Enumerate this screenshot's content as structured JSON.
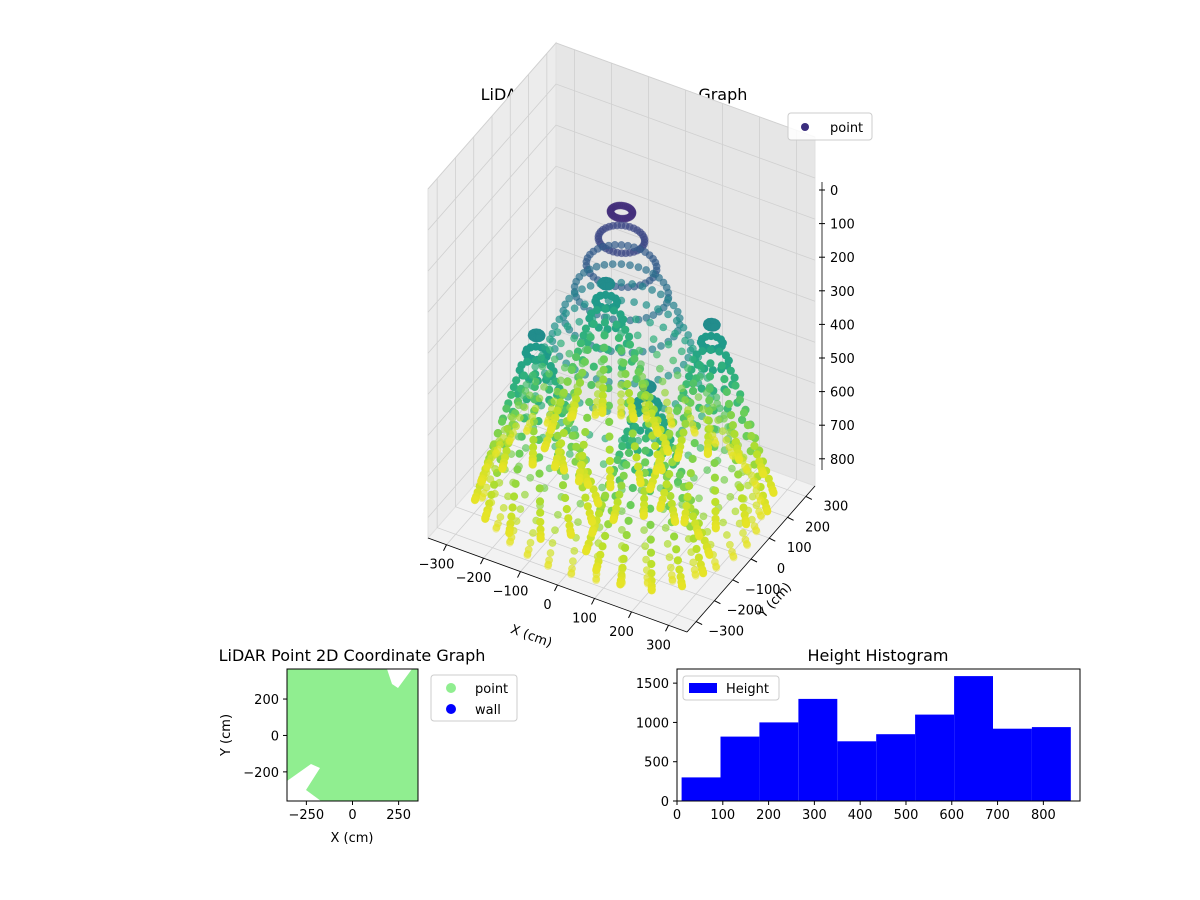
{
  "chart_data": [
    {
      "type": "scatter3d",
      "title": "LiDAR Point 3D Coordinate Graph",
      "xlabel": "X (cm)",
      "ylabel": "Y (cm)",
      "zlabel": "",
      "x_ticks": [
        "−300",
        "−200",
        "−100",
        "0",
        "100",
        "200",
        "300"
      ],
      "y_ticks": [
        "−300",
        "−200",
        "−100",
        "0",
        "100",
        "200",
        "300"
      ],
      "z_ticks": [
        "0",
        "100",
        "200",
        "300",
        "400",
        "500",
        "600",
        "700",
        "800"
      ],
      "xlim": [
        -350,
        350
      ],
      "ylim": [
        -350,
        350
      ],
      "zlim": [
        0,
        850
      ],
      "z_inverted": true,
      "colormap": "viridis",
      "legend": [
        {
          "name": "point",
          "color": "#3b2e7e"
        }
      ],
      "legend_loc": "upper right",
      "grid": true
    },
    {
      "type": "scatter",
      "title": "LiDAR Point 2D Coordinate Graph",
      "xlabel": "X (cm)",
      "ylabel": "Y (cm)",
      "x_ticks": [
        "−250",
        "0",
        "250"
      ],
      "y_ticks": [
        "200",
        "0",
        "−200"
      ],
      "xlim": [
        -355,
        355
      ],
      "ylim": [
        -360,
        365
      ],
      "series": [
        {
          "name": "point",
          "color": "#90ee90"
        },
        {
          "name": "wall",
          "color": "#0000ff"
        }
      ],
      "legend_loc": "outside right"
    },
    {
      "type": "bar",
      "title": "Height Histogram",
      "x_ticks": [
        "0",
        "100",
        "200",
        "300",
        "400",
        "500",
        "600",
        "700",
        "800"
      ],
      "y_ticks": [
        "0",
        "500",
        "1000",
        "1500"
      ],
      "xlim": [
        0,
        880
      ],
      "ylim": [
        0,
        1680
      ],
      "bin_edges": [
        10,
        95,
        180,
        265,
        350,
        435,
        520,
        605,
        690,
        775,
        860
      ],
      "values": [
        300,
        820,
        1000,
        1300,
        760,
        850,
        1100,
        1590,
        920,
        940
      ],
      "color": "#0000ff",
      "legend": [
        {
          "name": "Height",
          "color": "#0000ff"
        }
      ],
      "legend_loc": "upper left"
    }
  ]
}
